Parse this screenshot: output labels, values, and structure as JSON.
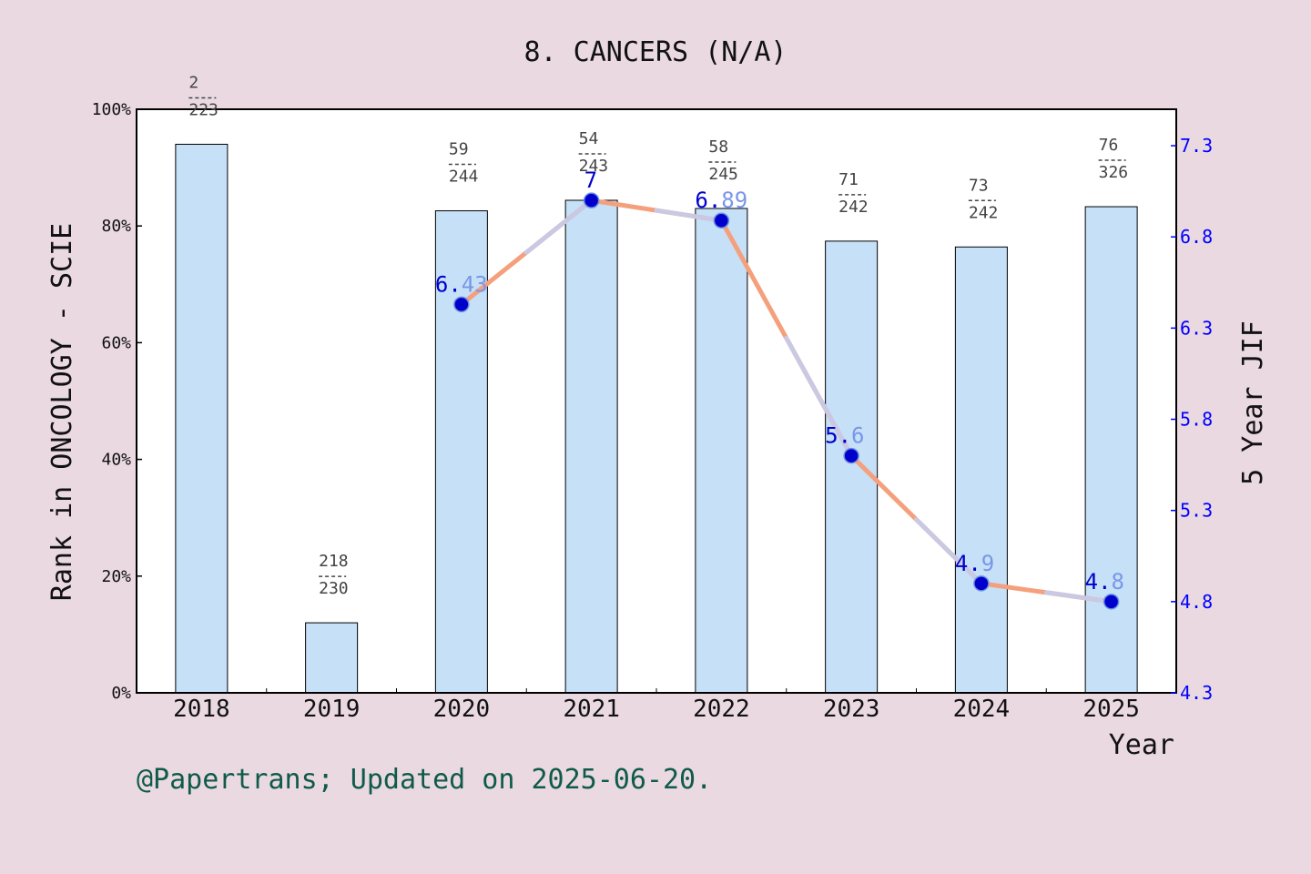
{
  "chart_data": {
    "type": "bar+line",
    "title": "8. CANCERS (N/A)",
    "xlabel": "Year",
    "ylabel": "Rank in ONCOLOGY - SCIE",
    "y2label": "5 Year JIF",
    "categories": [
      "2018",
      "2019",
      "2020",
      "2021",
      "2022",
      "2023",
      "2024",
      "2025"
    ],
    "ylim": [
      0,
      100
    ],
    "y_ticks": [
      "0%",
      "20%",
      "40%",
      "60%",
      "80%",
      "100%"
    ],
    "y2lim": [
      4.3,
      7.5
    ],
    "y2_ticks": [
      "4.3",
      "4.8",
      "5.3",
      "5.8",
      "6.3",
      "6.8",
      "7.3"
    ],
    "series": [
      {
        "kind": "bar",
        "values": [
          94,
          12,
          82.6,
          84.4,
          83,
          77.4,
          76.4,
          83.3
        ],
        "rank": [
          "2",
          "218",
          "59",
          "54",
          "58",
          "71",
          "73",
          "76"
        ],
        "total": [
          "223",
          "230",
          "244",
          "243",
          "245",
          "242",
          "242",
          "326"
        ],
        "color": "#c5e0f7"
      },
      {
        "kind": "line",
        "values": [
          null,
          null,
          6.43,
          7,
          6.89,
          5.6,
          4.9,
          4.8
        ],
        "labels": [
          "",
          "",
          "6.43",
          "7",
          "6.89",
          "5.6",
          "4.9",
          "4.8"
        ],
        "line_colors": [
          "#f5a07c",
          "#c9c9e3"
        ],
        "marker_color": "#0000cc"
      }
    ],
    "grid": false,
    "legend": "none"
  },
  "footer": "@Papertrans; Updated on 2025-06-20.",
  "colors": {
    "background": "#ead9e1",
    "plot_background": "#ffffff",
    "axis": "#000000",
    "y2_axis": "#0000ff",
    "footer": "#0f5a4a",
    "jif_label_dark": "#0000cc",
    "jif_label_light": "#7a96e8"
  }
}
